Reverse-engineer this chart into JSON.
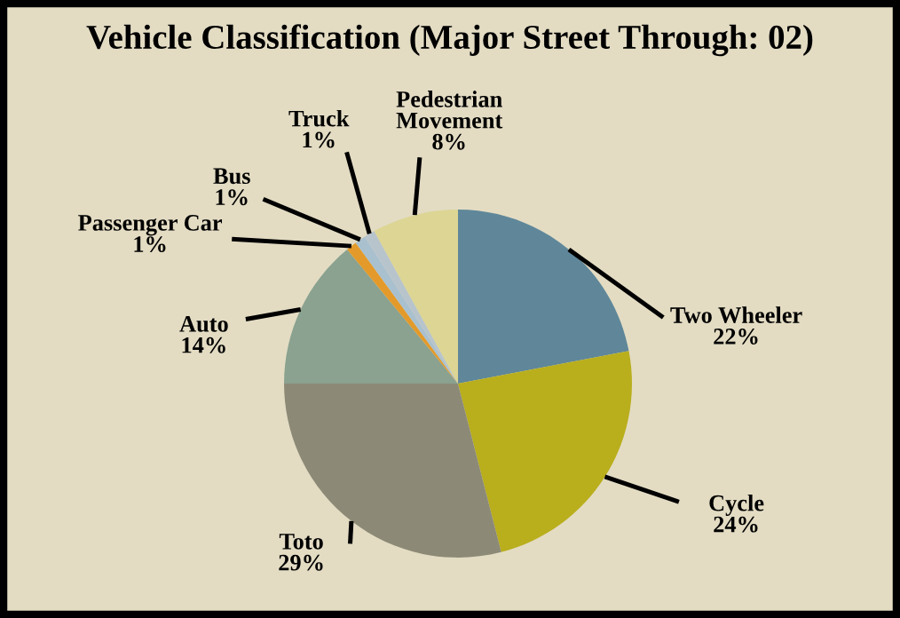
{
  "chart_data": {
    "type": "pie",
    "title": "Vehicle Classification (Major Street Through: 02)",
    "categories": [
      "Two Wheeler",
      "Cycle",
      "Toto",
      "Auto",
      "Passenger Car",
      "Bus",
      "Truck",
      "Pedestrian Movement"
    ],
    "values": [
      22,
      24,
      29,
      14,
      1,
      1,
      1,
      8
    ],
    "colors": [
      "#5f8799",
      "#b9ae1c",
      "#8c8a76",
      "#8aa28f",
      "#e39a2a",
      "#a9c0cf",
      "#b8c4cc",
      "#dcd594"
    ],
    "value_labels": [
      "22%",
      "24%",
      "29%",
      "14%",
      "1%",
      "1%",
      "1%",
      "8%"
    ],
    "legend": false
  }
}
